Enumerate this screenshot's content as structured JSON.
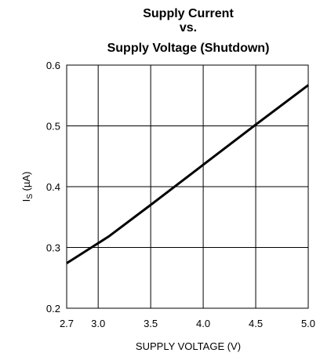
{
  "chart_data": {
    "type": "line",
    "title": [
      "Supply Current",
      "vs.",
      "Supply Voltage (Shutdown)"
    ],
    "xlabel": "SUPPLY VOLTAGE (V)",
    "ylabel": [
      "I",
      "S",
      " (µA)"
    ],
    "x": [
      2.7,
      3.1,
      3.5,
      4.0,
      4.5,
      5.0
    ],
    "series": [
      {
        "color": "#000000",
        "values": [
          0.274,
          0.318,
          0.37,
          0.436,
          0.502,
          0.567
        ]
      }
    ],
    "xlim": [
      2.7,
      5.0
    ],
    "xticks": [
      2.7,
      {
        "value": 3,
        "label": "3.0"
      },
      3.5,
      {
        "value": 4,
        "label": "4.0"
      },
      4.5,
      {
        "value": 5,
        "label": "5.0"
      }
    ],
    "ylim": [
      0.2,
      0.6
    ],
    "yticks": [
      0.2,
      0.3,
      0.4,
      0.5,
      0.6
    ],
    "grid": true
  }
}
